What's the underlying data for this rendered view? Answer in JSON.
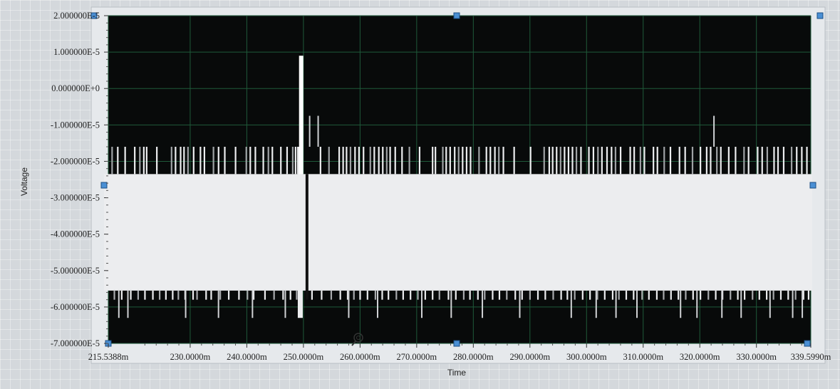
{
  "chart_data": {
    "type": "line",
    "xlabel": "Time",
    "ylabel": "Voltage",
    "xlim": [
      215.5388,
      339.599
    ],
    "ylim": [
      -7e-05,
      2e-05
    ],
    "x_ticks": [
      {
        "value": 215.5388,
        "label": "215.5388m"
      },
      {
        "value": 230,
        "label": "230.0000m"
      },
      {
        "value": 240,
        "label": "240.0000m"
      },
      {
        "value": 250,
        "label": "250.0000m"
      },
      {
        "value": 260,
        "label": "260.0000m"
      },
      {
        "value": 270,
        "label": "270.0000m"
      },
      {
        "value": 280,
        "label": "280.0000m"
      },
      {
        "value": 290,
        "label": "290.0000m"
      },
      {
        "value": 300,
        "label": "300.0000m"
      },
      {
        "value": 310,
        "label": "310.0000m"
      },
      {
        "value": 320,
        "label": "320.0000m"
      },
      {
        "value": 330,
        "label": "330.0000m"
      },
      {
        "value": 339.599,
        "label": "339.5990m"
      }
    ],
    "y_ticks": [
      {
        "value": 2e-05,
        "label": "2.000000E-5"
      },
      {
        "value": 1e-05,
        "label": "1.000000E-5"
      },
      {
        "value": 0,
        "label": "0.000000E+0"
      },
      {
        "value": -1e-05,
        "label": "-1.000000E-5"
      },
      {
        "value": -2e-05,
        "label": "-2.000000E-5"
      },
      {
        "value": -3e-05,
        "label": "-3.000000E-5"
      },
      {
        "value": -4e-05,
        "label": "-4.000000E-5"
      },
      {
        "value": -5e-05,
        "label": "-5.000000E-5"
      },
      {
        "value": -6e-05,
        "label": "-6.000000E-5"
      },
      {
        "value": -7e-05,
        "label": "-7.000000E-5"
      }
    ],
    "grid": true,
    "signal": {
      "baseline_high": -2.35e-05,
      "baseline_low": -5.55e-05,
      "spike_high_level": -1.6e-05,
      "spike_low_level": -6.3e-05,
      "peak": {
        "x": 249.6,
        "y": 9e-06
      },
      "secondary_peaks": [
        {
          "x": 251.1,
          "y": -7.5e-06
        },
        {
          "x": 252.6,
          "y": -7.5e-06
        },
        {
          "x": 322.5,
          "y": -7.5e-06
        }
      ],
      "high_spike_x": [
        216.2,
        217.2,
        218.5,
        220.2,
        221.1,
        221.8,
        222.3,
        224.1,
        226.7,
        227.4,
        228.3,
        228.9,
        229.6,
        230.6,
        231.8,
        232.5,
        234.1,
        235.0,
        236.1,
        238.0,
        239.9,
        240.6,
        241.5,
        242.9,
        243.8,
        244.5,
        246.0,
        247.1,
        248.1,
        248.6,
        249.0,
        253.0,
        254.5,
        256.3,
        257.0,
        257.6,
        258.3,
        259.1,
        259.8,
        260.6,
        261.8,
        262.5,
        263.3,
        264.0,
        264.7,
        265.3,
        266.2,
        267.4,
        268.7,
        270.5,
        272.8,
        273.3,
        274.6,
        275.2,
        275.9,
        276.7,
        277.4,
        278.1,
        278.8,
        279.5,
        281.0,
        282.3,
        283.0,
        283.8,
        284.5,
        285.3,
        287.2,
        290.1,
        292.5,
        293.4,
        294.0,
        294.7,
        295.4,
        296.1,
        296.8,
        297.5,
        298.2,
        299.0,
        300.4,
        301.2,
        302.0,
        302.7,
        303.6,
        304.4,
        305.1,
        306.0,
        307.7,
        308.4,
        309.5,
        310.2,
        311.8,
        312.5,
        313.7,
        314.8,
        316.4,
        317.4,
        318.7,
        320.1,
        321.2,
        321.9,
        323.0,
        323.7,
        325.1,
        326.3,
        327.8,
        328.6,
        330.2,
        331.0,
        331.9,
        333.1,
        333.8,
        334.8,
        336.2,
        337.1,
        338.0,
        338.9
      ],
      "low_spike_x": [
        216.6,
        217.9,
        219.5,
        220.8,
        222.0,
        223.4,
        224.6,
        225.7,
        226.9,
        227.9,
        229.1,
        230.5,
        231.2,
        232.8,
        233.7,
        235.3,
        236.8,
        238.6,
        240.1,
        241.2,
        243.2,
        244.8,
        246.4,
        247.7,
        248.8,
        251.5,
        253.2,
        254.9,
        256.5,
        257.8,
        258.9,
        260.0,
        261.3,
        262.7,
        263.9,
        265.0,
        266.4,
        267.6,
        268.9,
        270.2,
        271.5,
        272.8,
        274.0,
        275.6,
        276.9,
        278.3,
        279.4,
        280.8,
        282.0,
        283.4,
        284.6,
        285.9,
        287.4,
        288.6,
        290.0,
        291.4,
        292.7,
        294.1,
        295.5,
        296.6,
        297.9,
        299.3,
        300.6,
        301.9,
        303.2,
        304.6,
        305.7,
        307.0,
        308.3,
        309.8,
        311.0,
        312.4,
        313.6,
        314.9,
        316.2,
        317.5,
        318.8,
        320.1,
        321.5,
        322.8,
        324.0,
        325.4,
        326.7,
        327.9,
        329.3,
        330.5,
        331.8,
        333.0,
        334.3,
        335.6,
        336.9,
        338.3,
        339.2
      ],
      "deep_dip_x": [
        217.4,
        219.0,
        229.2,
        235.0,
        241.0,
        246.8,
        258.0,
        263.1,
        270.9,
        276.1,
        281.6,
        288.2,
        297.3,
        301.7,
        305.2,
        308.9,
        316.6,
        319.5,
        323.9,
        327.3,
        332.4,
        336.4,
        338.1
      ]
    }
  }
}
